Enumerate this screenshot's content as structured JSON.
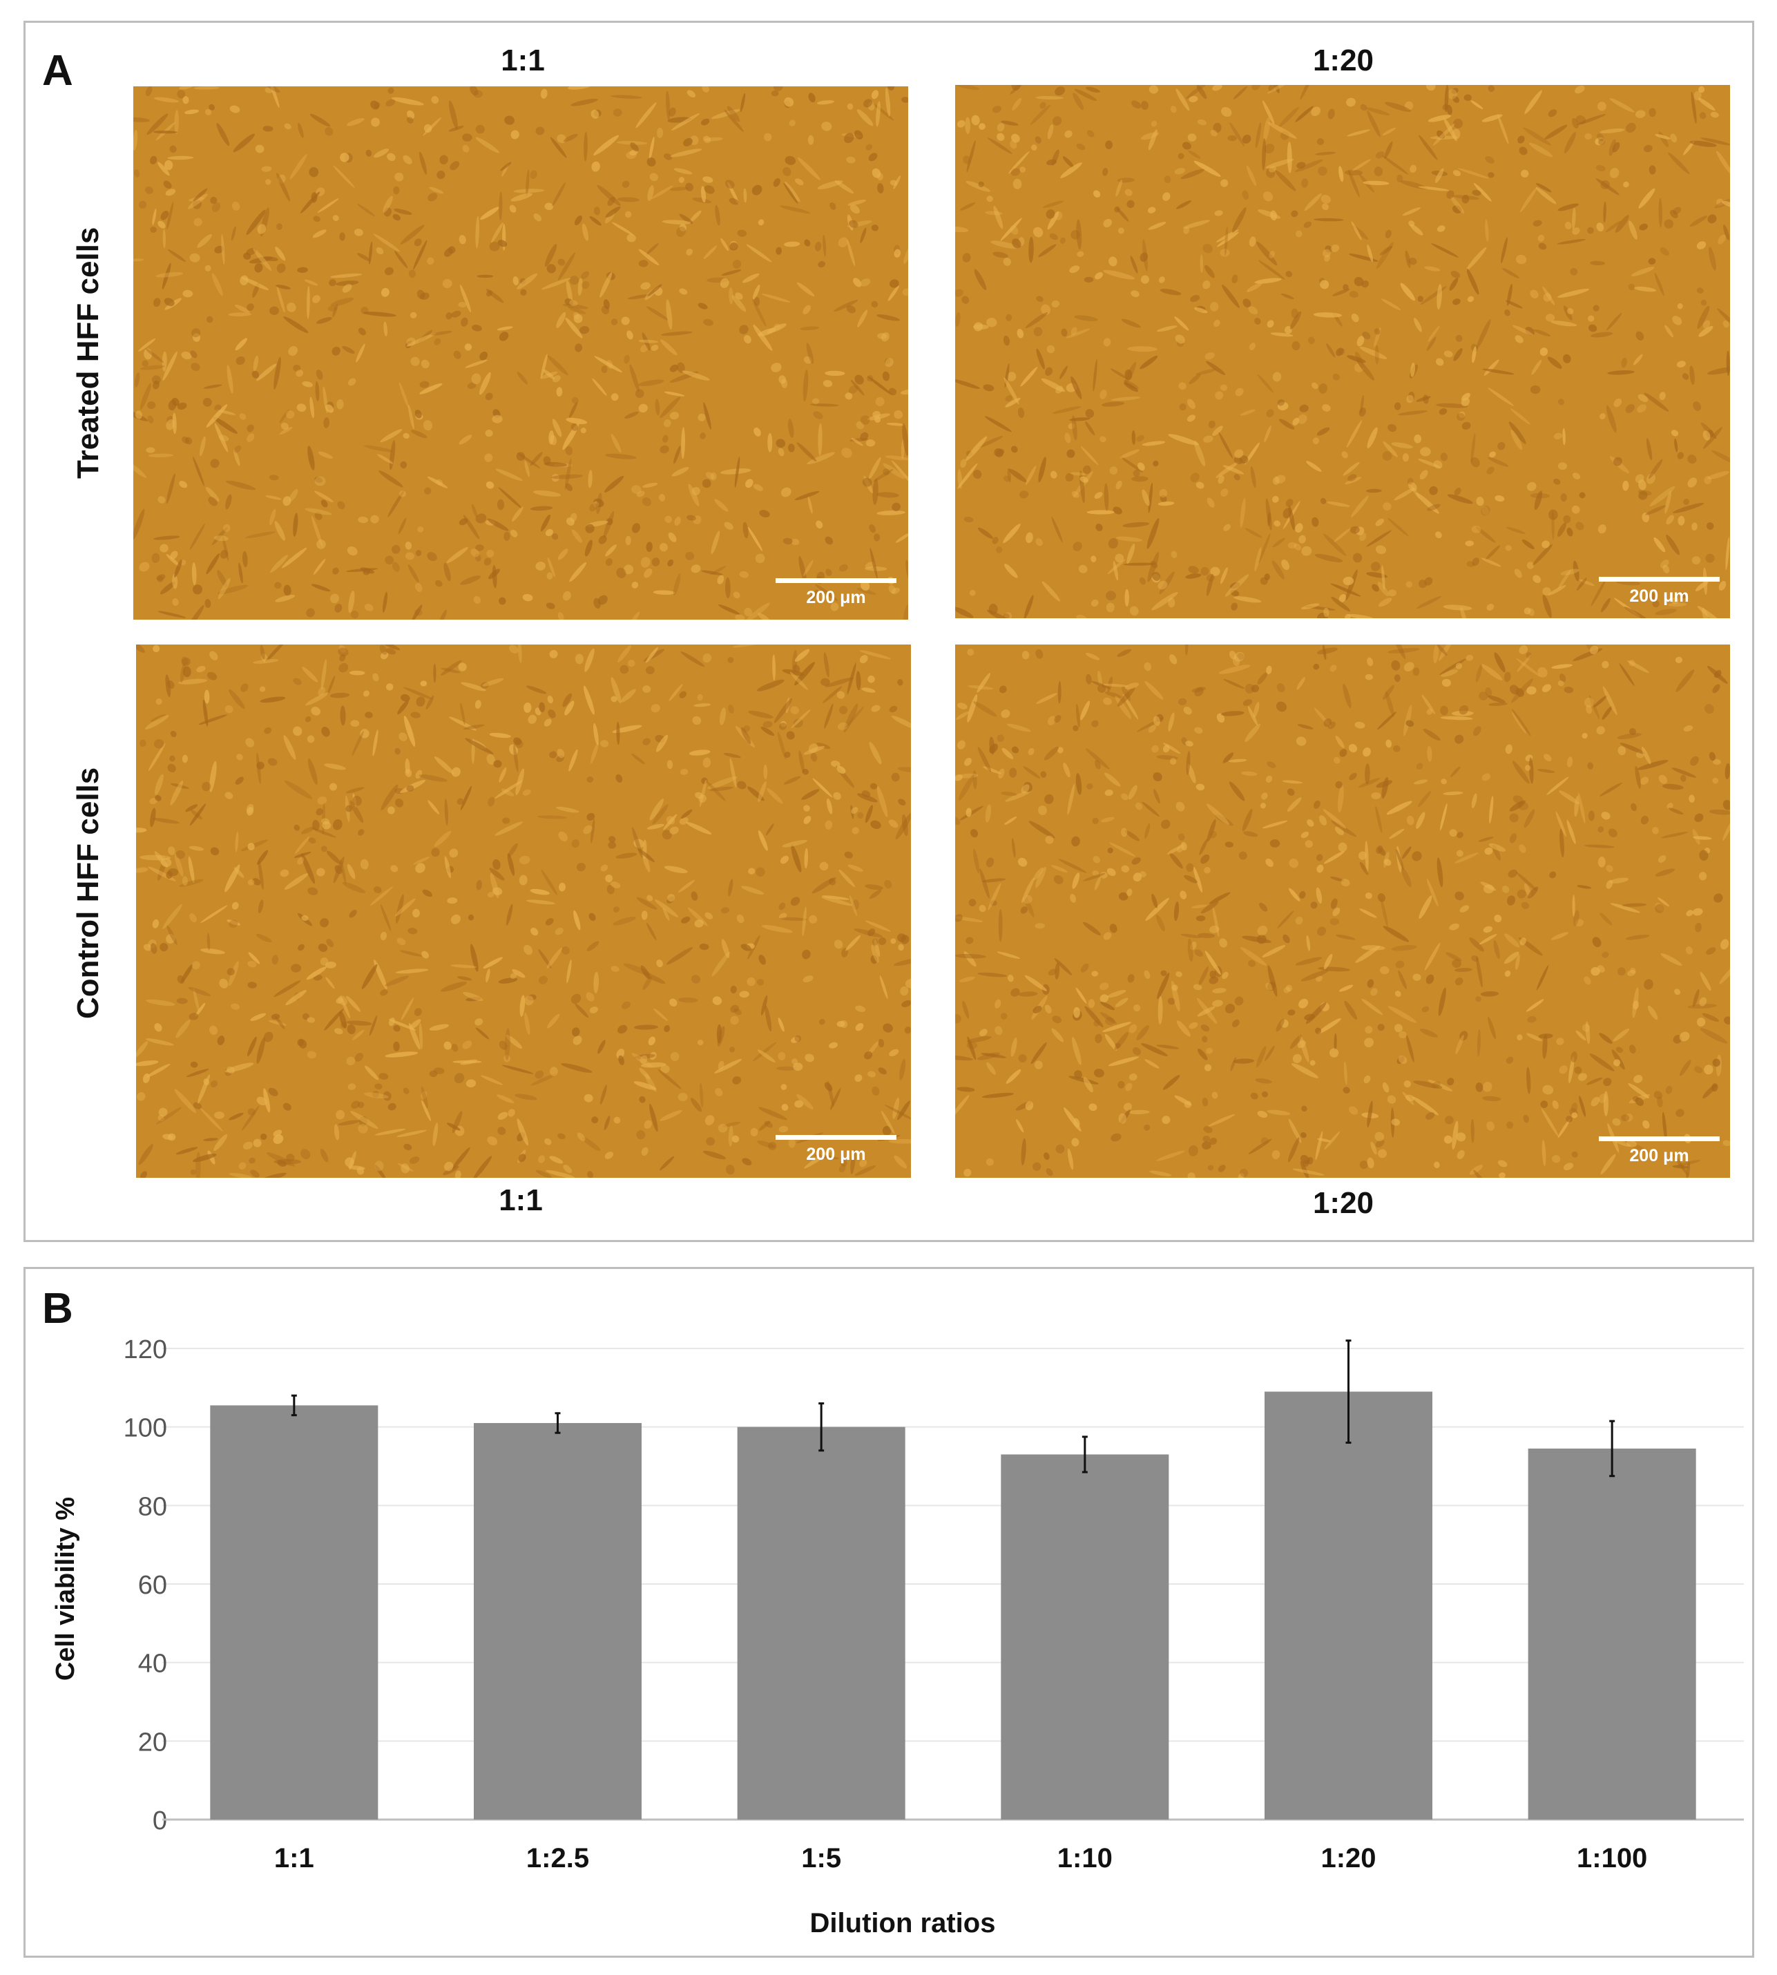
{
  "panel_a": {
    "letter": "A",
    "top_labels": [
      "1:1",
      "1:20"
    ],
    "bottom_labels": [
      "1:1",
      "1:20"
    ],
    "row_labels": [
      "Treated HFF cells",
      "Control HFF cells"
    ],
    "scale_bar": "200 μm",
    "image_tint": "#c98a2a"
  },
  "panel_b": {
    "letter": "B"
  },
  "chart_data": {
    "type": "bar",
    "categories": [
      "1:1",
      "1:2.5",
      "1:5",
      "1:10",
      "1:20",
      "1:100"
    ],
    "values": [
      105.5,
      101,
      100,
      93,
      109,
      94.5
    ],
    "errors": [
      2.5,
      2.5,
      6,
      4.5,
      13,
      7
    ],
    "xlabel": "Dilution ratios",
    "ylabel": "Cell viability %",
    "ylim": [
      0,
      120
    ],
    "yticks": [
      0,
      20,
      40,
      60,
      80,
      100,
      120
    ],
    "grid": true,
    "bar_color": "#8c8c8c"
  }
}
